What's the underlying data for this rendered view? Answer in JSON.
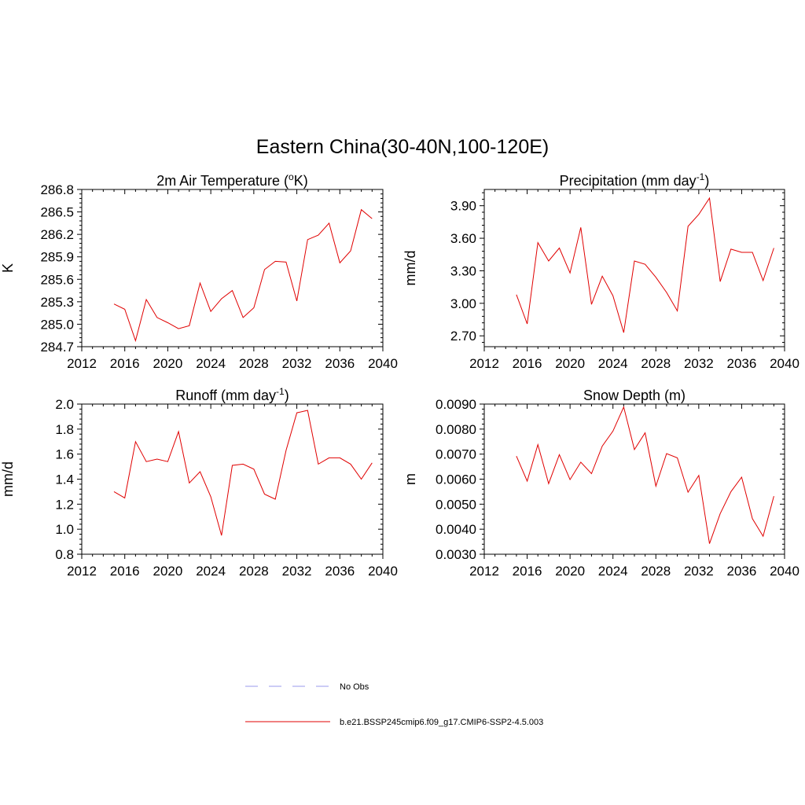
{
  "main_title": "Eastern China(30-40N,100-120E)",
  "colors": {
    "series": "#e00000",
    "obs": "#9999ee",
    "axis": "#000000"
  },
  "legend": {
    "obs_label": "No Obs",
    "model_label": "b.e21.BSSP245cmip6.f09_g17.CMIP6-SSP2-4.5.003"
  },
  "chart_data": [
    {
      "type": "line",
      "title": "2m Air Temperature (",
      "title_sup": "o",
      "title_after": "K)",
      "ylabel": "K",
      "xlabel": "",
      "xlim": [
        2012,
        2040
      ],
      "xticks": [
        "2012",
        "2016",
        "2020",
        "2024",
        "2028",
        "2032",
        "2036",
        "2040"
      ],
      "ylim": [
        284.7,
        286.8
      ],
      "yticks": [
        "284.7",
        "285.0",
        "285.3",
        "285.6",
        "285.9",
        "286.2",
        "286.5",
        "286.8"
      ],
      "x": [
        2015,
        2016,
        2017,
        2018,
        2019,
        2020,
        2021,
        2022,
        2023,
        2024,
        2025,
        2026,
        2027,
        2028,
        2029,
        2030,
        2031,
        2032,
        2033,
        2034,
        2035,
        2036,
        2037,
        2038,
        2039
      ],
      "values": [
        285.27,
        285.2,
        284.78,
        285.33,
        285.09,
        285.02,
        284.94,
        284.98,
        285.55,
        285.17,
        285.34,
        285.45,
        285.09,
        285.22,
        285.73,
        285.84,
        285.83,
        285.31,
        286.13,
        286.19,
        286.35,
        285.82,
        285.98,
        286.53,
        286.41
      ],
      "series_name": "b.e21.BSSP245cmip6.f09_g17.CMIP6-SSP2-4.5.003"
    },
    {
      "type": "line",
      "title": "Precipitation (mm day",
      "title_sup": "-1",
      "title_after": ")",
      "ylabel": "mm/d",
      "xlabel": "",
      "xlim": [
        2012,
        2040
      ],
      "xticks": [
        "2012",
        "2016",
        "2020",
        "2024",
        "2028",
        "2032",
        "2036",
        "2040"
      ],
      "ylim": [
        2.6,
        4.05
      ],
      "yticks": [
        "2.70",
        "3.00",
        "3.30",
        "3.60",
        "3.90"
      ],
      "x": [
        2015,
        2016,
        2017,
        2018,
        2019,
        2020,
        2021,
        2022,
        2023,
        2024,
        2025,
        2026,
        2027,
        2028,
        2029,
        2030,
        2031,
        2032,
        2033,
        2034,
        2035,
        2036,
        2037,
        2038,
        2039
      ],
      "values": [
        3.08,
        2.81,
        3.56,
        3.39,
        3.51,
        3.28,
        3.7,
        2.99,
        3.25,
        3.07,
        2.73,
        3.39,
        3.36,
        3.24,
        3.1,
        2.93,
        3.71,
        3.82,
        3.97,
        3.2,
        3.5,
        3.47,
        3.47,
        3.21,
        3.51
      ],
      "series_name": "b.e21.BSSP245cmip6.f09_g17.CMIP6-SSP2-4.5.003"
    },
    {
      "type": "line",
      "title": "Runoff (mm day",
      "title_sup": "-1",
      "title_after": ")",
      "ylabel": "mm/d",
      "xlabel": "",
      "xlim": [
        2012,
        2040
      ],
      "xticks": [
        "2012",
        "2016",
        "2020",
        "2024",
        "2028",
        "2032",
        "2036",
        "2040"
      ],
      "ylim": [
        0.8,
        2.0
      ],
      "yticks": [
        "0.8",
        "1.0",
        "1.2",
        "1.4",
        "1.6",
        "1.8",
        "2.0"
      ],
      "x": [
        2015,
        2016,
        2017,
        2018,
        2019,
        2020,
        2021,
        2022,
        2023,
        2024,
        2025,
        2026,
        2027,
        2028,
        2029,
        2030,
        2031,
        2032,
        2033,
        2034,
        2035,
        2036,
        2037,
        2038,
        2039
      ],
      "values": [
        1.3,
        1.25,
        1.7,
        1.54,
        1.56,
        1.54,
        1.78,
        1.37,
        1.46,
        1.26,
        0.95,
        1.51,
        1.52,
        1.48,
        1.28,
        1.24,
        1.63,
        1.93,
        1.95,
        1.52,
        1.57,
        1.57,
        1.52,
        1.4,
        1.53
      ],
      "series_name": "b.e21.BSSP245cmip6.f09_g17.CMIP6-SSP2-4.5.003"
    },
    {
      "type": "line",
      "title": "Snow Depth (m)",
      "title_sup": "",
      "title_after": "",
      "ylabel": "m",
      "xlabel": "",
      "xlim": [
        2012,
        2040
      ],
      "xticks": [
        "2012",
        "2016",
        "2020",
        "2024",
        "2028",
        "2032",
        "2036",
        "2040"
      ],
      "ylim": [
        0.003,
        0.009
      ],
      "yticks": [
        "0.0030",
        "0.0040",
        "0.0050",
        "0.0060",
        "0.0070",
        "0.0080",
        "0.0090"
      ],
      "x": [
        2015,
        2016,
        2017,
        2018,
        2019,
        2020,
        2021,
        2022,
        2023,
        2024,
        2025,
        2026,
        2027,
        2028,
        2029,
        2030,
        2031,
        2032,
        2033,
        2034,
        2035,
        2036,
        2037,
        2038,
        2039
      ],
      "values": [
        0.00692,
        0.00592,
        0.00738,
        0.00582,
        0.00698,
        0.00598,
        0.00668,
        0.00622,
        0.00732,
        0.00792,
        0.00888,
        0.00718,
        0.00785,
        0.00572,
        0.00702,
        0.00685,
        0.00548,
        0.00615,
        0.00342,
        0.00462,
        0.0055,
        0.00608,
        0.00442,
        0.00372,
        0.00532
      ],
      "series_name": "b.e21.BSSP245cmip6.f09_g17.CMIP6-SSP2-4.5.003"
    }
  ]
}
